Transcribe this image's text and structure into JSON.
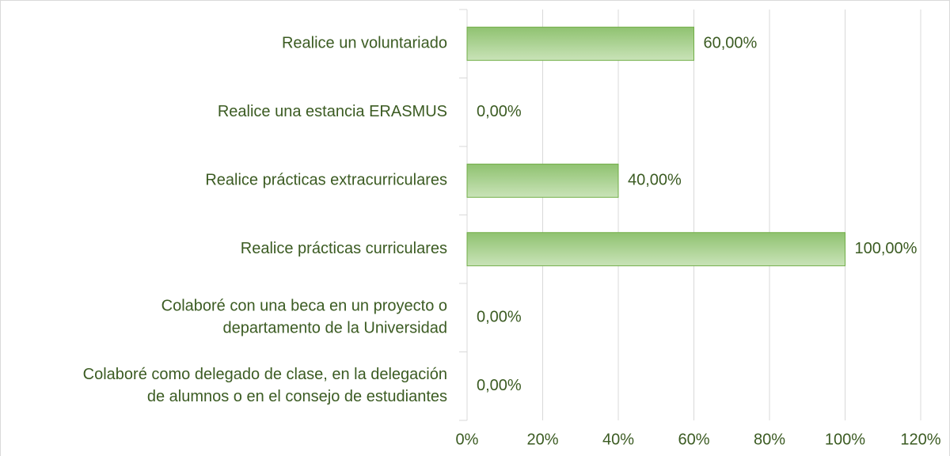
{
  "chart_data": {
    "type": "bar",
    "orientation": "horizontal",
    "categories": [
      "Realice un voluntariado",
      "Realice una estancia ERASMUS",
      "Realice prácticas extracurriculares",
      "Realice prácticas curriculares",
      "Colaboré con una beca en un proyecto o\ndepartamento de la Universidad",
      "Colaboré como delegado de clase, en la delegación\nde alumnos o en el consejo de estudiantes"
    ],
    "values": [
      60,
      0,
      40,
      100,
      0,
      0
    ],
    "value_labels": [
      "60,00%",
      "0,00%",
      "40,00%",
      "100,00%",
      "0,00%",
      "0,00%"
    ],
    "color": "#a9d18e",
    "xlim": [
      0,
      120
    ],
    "xticks": [
      {
        "value": 0,
        "label": "0%"
      },
      {
        "value": 20,
        "label": "20%"
      },
      {
        "value": 40,
        "label": "40%"
      },
      {
        "value": 60,
        "label": "60%"
      },
      {
        "value": 80,
        "label": "80%"
      },
      {
        "value": 100,
        "label": "100%"
      },
      {
        "value": 120,
        "label": "120%"
      }
    ],
    "grid": true
  }
}
